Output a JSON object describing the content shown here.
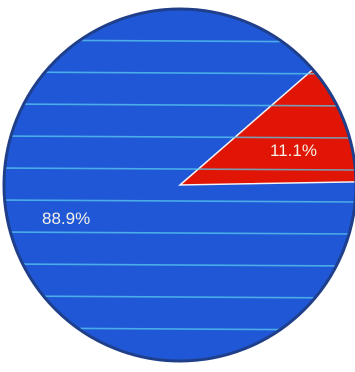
{
  "chart_data": {
    "type": "pie",
    "slices": [
      {
        "label": "88.9%",
        "value": 88.9,
        "color": "#1f57d6"
      },
      {
        "label": "11.1%",
        "value": 11.1,
        "color": "#e01505"
      }
    ],
    "line_color": "#59c8ee",
    "outer_ring_color": "#1f3f8a"
  }
}
